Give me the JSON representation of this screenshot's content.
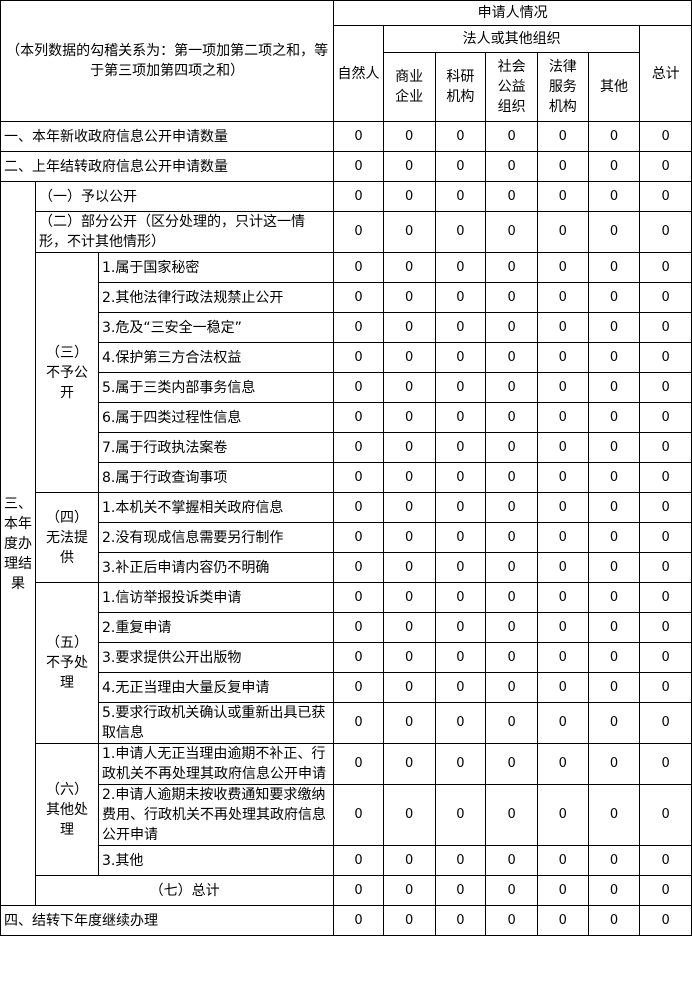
{
  "header": {
    "title_cell": "（本列数据的勾稽关系为：第一项加第二项之和，等于第三项加第四项之和）",
    "applicant": "申请人情况",
    "natural_person": "自然人",
    "legal_group": "法人或其他组织",
    "legal_cols": [
      "商业企业",
      "科研机构",
      "社会公益组织",
      "法律服务机构",
      "其他"
    ],
    "total": "总计"
  },
  "row1": {
    "label": "一、本年新收政府信息公开申请数量",
    "values": [
      "0",
      "0",
      "0",
      "0",
      "0",
      "0",
      "0"
    ]
  },
  "row2": {
    "label": "二、上年结转政府信息公开申请数量",
    "values": [
      "0",
      "0",
      "0",
      "0",
      "0",
      "0",
      "0"
    ]
  },
  "section3": {
    "label": "三、本年度办理结果",
    "disclose": {
      "label": "（一）予以公开",
      "values": [
        "0",
        "0",
        "0",
        "0",
        "0",
        "0",
        "0"
      ]
    },
    "partial": {
      "label": "（二）部分公开（区分处理的，只计这一情形，不计其他情形）",
      "values": [
        "0",
        "0",
        "0",
        "0",
        "0",
        "0",
        "0"
      ]
    },
    "groups": [
      {
        "label": "（三）不予公开",
        "items": [
          {
            "label": "1.属于国家秘密",
            "values": [
              "0",
              "0",
              "0",
              "0",
              "0",
              "0",
              "0"
            ]
          },
          {
            "label": "2.其他法律行政法规禁止公开",
            "values": [
              "0",
              "0",
              "0",
              "0",
              "0",
              "0",
              "0"
            ]
          },
          {
            "label": "3.危及“三安全一稳定”",
            "values": [
              "0",
              "0",
              "0",
              "0",
              "0",
              "0",
              "0"
            ]
          },
          {
            "label": "4.保护第三方合法权益",
            "values": [
              "0",
              "0",
              "0",
              "0",
              "0",
              "0",
              "0"
            ]
          },
          {
            "label": "5.属于三类内部事务信息",
            "values": [
              "0",
              "0",
              "0",
              "0",
              "0",
              "0",
              "0"
            ]
          },
          {
            "label": "6.属于四类过程性信息",
            "values": [
              "0",
              "0",
              "0",
              "0",
              "0",
              "0",
              "0"
            ]
          },
          {
            "label": "7.属于行政执法案卷",
            "values": [
              "0",
              "0",
              "0",
              "0",
              "0",
              "0",
              "0"
            ]
          },
          {
            "label": "8.属于行政查询事项",
            "values": [
              "0",
              "0",
              "0",
              "0",
              "0",
              "0",
              "0"
            ]
          }
        ]
      },
      {
        "label": "（四）无法提供",
        "items": [
          {
            "label": "1.本机关不掌握相关政府信息",
            "values": [
              "0",
              "0",
              "0",
              "0",
              "0",
              "0",
              "0"
            ]
          },
          {
            "label": "2.没有现成信息需要另行制作",
            "values": [
              "0",
              "0",
              "0",
              "0",
              "0",
              "0",
              "0"
            ]
          },
          {
            "label": "3.补正后申请内容仍不明确",
            "values": [
              "0",
              "0",
              "0",
              "0",
              "0",
              "0",
              "0"
            ]
          }
        ]
      },
      {
        "label": "（五）不予处理",
        "items": [
          {
            "label": "1.信访举报投诉类申请",
            "values": [
              "0",
              "0",
              "0",
              "0",
              "0",
              "0",
              "0"
            ]
          },
          {
            "label": "2.重复申请",
            "values": [
              "0",
              "0",
              "0",
              "0",
              "0",
              "0",
              "0"
            ]
          },
          {
            "label": "3.要求提供公开出版物",
            "values": [
              "0",
              "0",
              "0",
              "0",
              "0",
              "0",
              "0"
            ]
          },
          {
            "label": "4.无正当理由大量反复申请",
            "values": [
              "0",
              "0",
              "0",
              "0",
              "0",
              "0",
              "0"
            ]
          },
          {
            "label": "5.要求行政机关确认或重新出具已获取信息",
            "values": [
              "0",
              "0",
              "0",
              "0",
              "0",
              "0",
              "0"
            ]
          }
        ]
      },
      {
        "label": "（六）其他处理",
        "items": [
          {
            "label": "1.申请人无正当理由逾期不补正、行政机关不再处理其政府信息公开申请",
            "values": [
              "0",
              "0",
              "0",
              "0",
              "0",
              "0",
              "0"
            ]
          },
          {
            "label": "2.申请人逾期未按收费通知要求缴纳费用、行政机关不再处理其政府信息公开申请",
            "values": [
              "0",
              "0",
              "0",
              "0",
              "0",
              "0",
              "0"
            ]
          },
          {
            "label": "3.其他",
            "values": [
              "0",
              "0",
              "0",
              "0",
              "0",
              "0",
              "0"
            ]
          }
        ]
      }
    ],
    "total": {
      "label": "（七）总计",
      "values": [
        "0",
        "0",
        "0",
        "0",
        "0",
        "0",
        "0"
      ]
    }
  },
  "row4": {
    "label": "四、结转下年度继续办理",
    "values": [
      "0",
      "0",
      "0",
      "0",
      "0",
      "0",
      "0"
    ]
  }
}
